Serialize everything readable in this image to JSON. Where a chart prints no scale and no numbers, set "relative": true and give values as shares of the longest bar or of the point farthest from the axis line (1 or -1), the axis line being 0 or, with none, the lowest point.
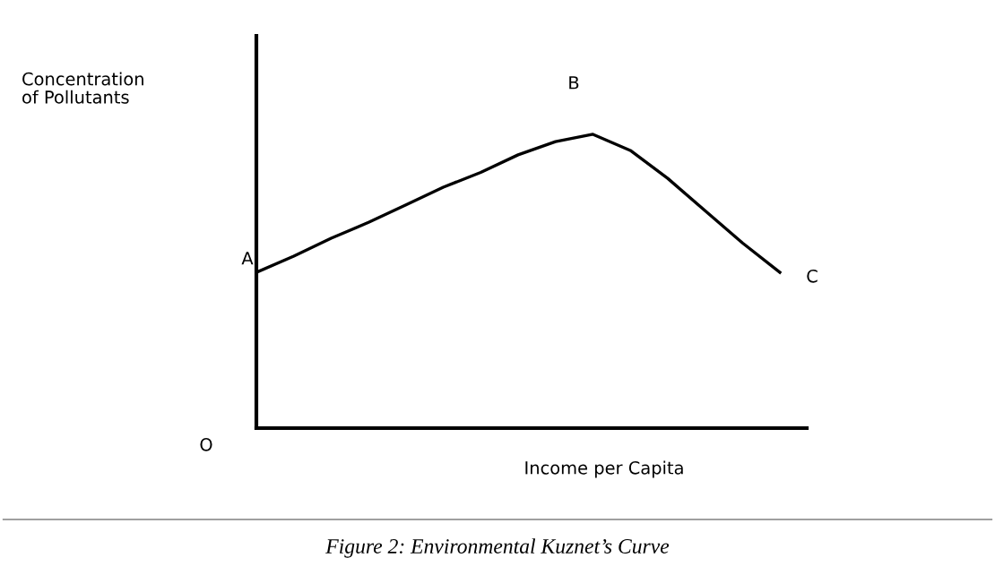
{
  "chart_data": {
    "type": "line",
    "relative": true,
    "categories": [
      null,
      null,
      null,
      null,
      null,
      null,
      null,
      null,
      null,
      null,
      null,
      null,
      null,
      null,
      null
    ],
    "values": [
      0.53,
      0.585,
      0.646,
      0.7,
      0.76,
      0.82,
      0.87,
      0.93,
      0.975,
      1.0,
      0.945,
      0.85,
      0.74,
      0.63,
      0.53
    ],
    "color": "#000000",
    "xlabel": "Income per Capita",
    "annotations": [
      "A",
      "B",
      "C",
      "O",
      "Figure 2: Environmental Kuznet’s Curve",
      "Concentration\nof Pollutants"
    ],
    "legend": false,
    "marker": "none",
    "line_style": "solid"
  }
}
